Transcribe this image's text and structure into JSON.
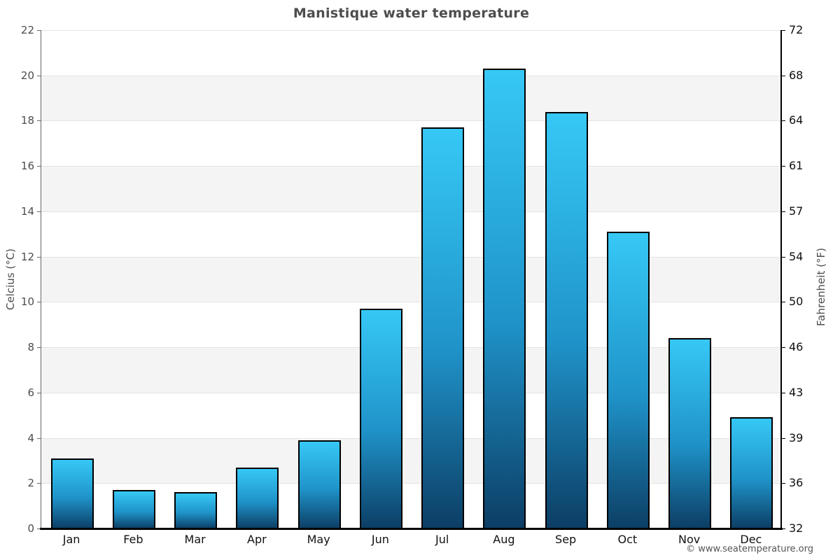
{
  "title": "Manistique water temperature",
  "copyright": "© www.seatemperature.org",
  "chart_data": {
    "type": "bar",
    "title": "Manistique water temperature",
    "categories": [
      "Jan",
      "Feb",
      "Mar",
      "Apr",
      "May",
      "Jun",
      "Jul",
      "Aug",
      "Sep",
      "Oct",
      "Nov",
      "Dec"
    ],
    "values": [
      3.1,
      1.7,
      1.6,
      2.7,
      3.9,
      9.7,
      17.7,
      20.3,
      18.4,
      13.1,
      8.4,
      4.9
    ],
    "series_name": "Water temperature (°C)",
    "xlabel": "",
    "ylabel_left": "Celcius (°C)",
    "ylabel_right": "Fahrenheit (°F)",
    "ylim": [
      0,
      22
    ],
    "yticks_celsius": [
      0,
      2,
      4,
      6,
      8,
      10,
      12,
      14,
      16,
      18,
      20,
      22
    ],
    "yticks_fahrenheit": [
      "32",
      "36",
      "39",
      "43",
      "46",
      "50",
      "54",
      "57",
      "61",
      "64",
      "68",
      "72"
    ],
    "grid": true,
    "legend": false,
    "background_bands": "alternating white / light-gray every 2 °C, white band at top (22-20)",
    "colors": {
      "bar_gradient_top": "#36c8f6",
      "bar_gradient_mid": "#1f93c9",
      "bar_gradient_bottom": "#0c3e65",
      "bar_border": "#000000",
      "band_gray": "#f4f4f4",
      "gridline": "#e3e3e3",
      "title_text": "#4d4d4d",
      "left_tick_text": "#4d4d4d",
      "right_tick_text": "#111111",
      "month_text": "#111111",
      "copyright_text": "#555555"
    }
  }
}
